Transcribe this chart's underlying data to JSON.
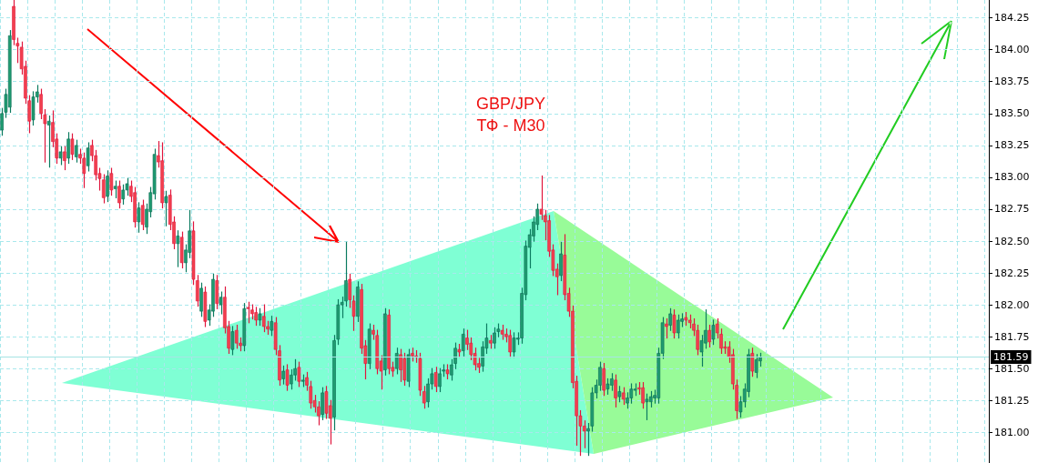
{
  "chart_data": {
    "type": "candlestick",
    "title": "GBP/JPY",
    "subtitle": "ТФ - M30",
    "categories": [
      null,
      null,
      null,
      null,
      null,
      null,
      null,
      null,
      null,
      null,
      null,
      null,
      null,
      null,
      null,
      null,
      null,
      null,
      null,
      null,
      null,
      null,
      null,
      null,
      null,
      null,
      null,
      null,
      null,
      null,
      null,
      null,
      null,
      null,
      null,
      null,
      null,
      null,
      null,
      null,
      null,
      null,
      null,
      null,
      null,
      null,
      null,
      null,
      null,
      null,
      null,
      null,
      null,
      null,
      null,
      null,
      null,
      null,
      null,
      null,
      null,
      null,
      null,
      null,
      null,
      null,
      null,
      null,
      null,
      null,
      null,
      null,
      null,
      null,
      null,
      null,
      null,
      null,
      null,
      null,
      null,
      null,
      null,
      null,
      null,
      null,
      null,
      null,
      null,
      null,
      null,
      null,
      null,
      null,
      null,
      null,
      null,
      null,
      null,
      null,
      null,
      null,
      null,
      null,
      null,
      null,
      null,
      null,
      null,
      null,
      null,
      null,
      null,
      null,
      null,
      null,
      null,
      null,
      null,
      null,
      null,
      null,
      null,
      null,
      null,
      null,
      null,
      null,
      null,
      null,
      null,
      null,
      null,
      null,
      null,
      null,
      null,
      null,
      null,
      null,
      null,
      null,
      null,
      null,
      null,
      null,
      null,
      null,
      null,
      null,
      null,
      null,
      null,
      null,
      null,
      null,
      null,
      null,
      null,
      null,
      null,
      null,
      null,
      null,
      null,
      null,
      null,
      null,
      null,
      null,
      null,
      null,
      null,
      null,
      null,
      null,
      null,
      null,
      null,
      null,
      null,
      null,
      null,
      null,
      null,
      null,
      null,
      null,
      null,
      null,
      null,
      null,
      null,
      null,
      null,
      null,
      null,
      null,
      null,
      null,
      null,
      null,
      null,
      null,
      null,
      null,
      null,
      null,
      null,
      null,
      null,
      null,
      null,
      null,
      null,
      null,
      null,
      null,
      null,
      null,
      null,
      null,
      null,
      null,
      null,
      null,
      null,
      null,
      null,
      null,
      null,
      null,
      null,
      null,
      null,
      null,
      null,
      null,
      null,
      null,
      null,
      null,
      null,
      null,
      null,
      null,
      null,
      null,
      null,
      null,
      null,
      null,
      null
    ],
    "ohlc": [
      [
        183.37,
        183.54,
        183.33,
        183.5
      ],
      [
        183.51,
        183.69,
        183.47,
        183.65
      ],
      [
        183.55,
        184.15,
        183.51,
        184.11
      ],
      [
        184.34,
        184.39,
        184.04,
        184.08
      ],
      [
        184.05,
        184.09,
        183.9,
        184.03
      ],
      [
        184.02,
        184.06,
        183.81,
        183.85
      ],
      [
        183.87,
        183.91,
        183.58,
        183.62
      ],
      [
        183.6,
        183.64,
        183.35,
        183.44
      ],
      [
        183.45,
        183.67,
        183.41,
        183.63
      ],
      [
        183.63,
        183.72,
        183.59,
        183.67
      ],
      [
        183.65,
        183.69,
        183.46,
        183.5
      ],
      [
        183.49,
        183.53,
        183.12,
        183.42
      ],
      [
        183.41,
        183.48,
        183.08,
        183.44
      ],
      [
        183.43,
        183.52,
        183.24,
        183.28
      ],
      [
        183.3,
        183.34,
        183.11,
        183.15
      ],
      [
        183.15,
        183.24,
        183.1,
        183.2
      ],
      [
        183.2,
        183.24,
        183.06,
        183.13
      ],
      [
        183.15,
        183.35,
        183.11,
        183.3
      ],
      [
        183.3,
        183.34,
        183.14,
        183.18
      ],
      [
        183.16,
        183.29,
        183.12,
        183.25
      ],
      [
        183.18,
        183.22,
        183.11,
        183.15
      ],
      [
        183.15,
        183.19,
        182.92,
        183.03
      ],
      [
        183.09,
        183.27,
        183.05,
        183.23
      ],
      [
        183.25,
        183.29,
        183.13,
        183.17
      ],
      [
        183.17,
        183.21,
        182.98,
        183.02
      ],
      [
        183.03,
        183.07,
        182.9,
        182.99
      ],
      [
        182.98,
        183.02,
        182.8,
        182.84
      ],
      [
        182.85,
        183.05,
        182.81,
        183.01
      ],
      [
        183.03,
        183.07,
        182.86,
        182.9
      ],
      [
        182.91,
        182.97,
        182.84,
        182.93
      ],
      [
        182.93,
        182.97,
        182.76,
        182.8
      ],
      [
        182.83,
        182.94,
        182.79,
        182.9
      ],
      [
        182.9,
        182.99,
        182.86,
        182.95
      ],
      [
        182.93,
        182.97,
        182.81,
        182.85
      ],
      [
        182.88,
        182.92,
        182.61,
        182.65
      ],
      [
        182.65,
        182.8,
        182.57,
        182.76
      ],
      [
        182.78,
        182.82,
        182.59,
        182.63
      ],
      [
        182.61,
        182.79,
        182.56,
        182.75
      ],
      [
        182.73,
        182.92,
        182.69,
        182.88
      ],
      [
        182.87,
        183.22,
        182.83,
        183.18
      ],
      [
        183.17,
        183.28,
        183.08,
        183.12
      ],
      [
        183.13,
        183.27,
        182.76,
        182.8
      ],
      [
        182.8,
        182.89,
        182.62,
        182.85
      ],
      [
        182.86,
        182.9,
        182.59,
        182.63
      ],
      [
        182.65,
        182.69,
        182.44,
        182.48
      ],
      [
        182.48,
        182.58,
        182.3,
        182.54
      ],
      [
        182.53,
        182.57,
        182.29,
        182.33
      ],
      [
        182.33,
        182.47,
        182.26,
        182.43
      ],
      [
        182.41,
        182.74,
        182.37,
        182.58
      ],
      [
        182.58,
        182.65,
        182.16,
        182.2
      ],
      [
        182.19,
        182.23,
        181.99,
        182.03
      ],
      [
        181.95,
        182.17,
        181.91,
        182.13
      ],
      [
        182.1,
        182.14,
        181.83,
        181.87
      ],
      [
        181.88,
        182.0,
        181.84,
        181.96
      ],
      [
        181.95,
        182.24,
        181.91,
        182.2
      ],
      [
        182.19,
        182.23,
        181.97,
        182.01
      ],
      [
        182.0,
        182.1,
        181.93,
        182.06
      ],
      [
        182.06,
        182.14,
        181.78,
        181.82
      ],
      [
        181.83,
        181.87,
        181.62,
        181.66
      ],
      [
        181.65,
        181.83,
        181.61,
        181.79
      ],
      [
        181.8,
        181.84,
        181.66,
        181.7
      ],
      [
        181.7,
        181.74,
        181.64,
        181.68
      ],
      [
        181.68,
        182.01,
        181.64,
        181.97
      ],
      [
        181.98,
        182.02,
        181.86,
        181.97
      ],
      [
        181.96,
        182.0,
        181.89,
        181.93
      ],
      [
        181.94,
        181.98,
        181.84,
        181.88
      ],
      [
        181.88,
        181.97,
        181.84,
        181.93
      ],
      [
        181.91,
        182.0,
        181.79,
        181.83
      ],
      [
        181.83,
        181.87,
        181.77,
        181.81
      ],
      [
        181.8,
        181.91,
        181.76,
        181.87
      ],
      [
        181.86,
        181.9,
        181.61,
        181.65
      ],
      [
        181.64,
        181.68,
        181.37,
        181.41
      ],
      [
        181.42,
        181.52,
        181.38,
        181.48
      ],
      [
        181.49,
        181.53,
        181.33,
        181.37
      ],
      [
        181.38,
        181.49,
        181.34,
        181.45
      ],
      [
        181.45,
        181.57,
        181.41,
        181.5
      ],
      [
        181.51,
        181.55,
        181.36,
        181.4
      ],
      [
        181.4,
        181.45,
        181.36,
        181.41
      ],
      [
        181.43,
        181.47,
        181.33,
        181.37
      ],
      [
        181.36,
        181.4,
        181.19,
        181.23
      ],
      [
        181.25,
        181.29,
        181.16,
        181.2
      ],
      [
        181.2,
        181.24,
        181.06,
        181.13
      ],
      [
        181.14,
        181.35,
        181.1,
        181.31
      ],
      [
        181.32,
        181.36,
        181.11,
        181.15
      ],
      [
        181.21,
        181.25,
        180.91,
        181.11
      ],
      [
        181.12,
        181.76,
        181.02,
        181.72
      ],
      [
        181.73,
        182.04,
        181.69,
        182.0
      ],
      [
        182.0,
        182.06,
        181.9,
        182.02
      ],
      [
        182.03,
        182.49,
        181.99,
        182.19
      ],
      [
        182.2,
        182.24,
        181.98,
        182.04
      ],
      [
        182.03,
        182.07,
        181.8,
        181.91
      ],
      [
        181.91,
        182.18,
        181.87,
        182.14
      ],
      [
        182.12,
        182.16,
        181.62,
        181.66
      ],
      [
        181.68,
        181.72,
        181.42,
        181.54
      ],
      [
        181.54,
        181.85,
        181.5,
        181.81
      ],
      [
        181.8,
        181.84,
        181.73,
        181.77
      ],
      [
        181.76,
        181.8,
        181.46,
        181.5
      ],
      [
        181.56,
        181.6,
        181.34,
        181.48
      ],
      [
        181.49,
        181.97,
        181.45,
        181.93
      ],
      [
        181.92,
        181.96,
        181.46,
        181.5
      ],
      [
        181.51,
        181.55,
        181.44,
        181.48
      ],
      [
        181.5,
        181.66,
        181.46,
        181.62
      ],
      [
        181.61,
        181.65,
        181.4,
        181.49
      ],
      [
        181.58,
        181.62,
        181.37,
        181.41
      ],
      [
        181.4,
        181.65,
        181.36,
        181.61
      ],
      [
        181.62,
        181.66,
        181.56,
        181.6
      ],
      [
        181.6,
        181.64,
        181.55,
        181.59
      ],
      [
        181.58,
        181.62,
        181.29,
        181.33
      ],
      [
        181.32,
        181.36,
        181.19,
        181.23
      ],
      [
        181.24,
        181.42,
        181.2,
        181.38
      ],
      [
        181.38,
        181.5,
        181.34,
        181.46
      ],
      [
        181.47,
        181.51,
        181.32,
        181.36
      ],
      [
        181.36,
        181.5,
        181.32,
        181.46
      ],
      [
        181.48,
        181.53,
        181.44,
        181.49
      ],
      [
        181.49,
        181.53,
        181.42,
        181.46
      ],
      [
        181.45,
        181.57,
        181.41,
        181.53
      ],
      [
        181.54,
        181.7,
        181.5,
        181.66
      ],
      [
        181.65,
        181.69,
        181.59,
        181.63
      ],
      [
        181.64,
        181.81,
        181.6,
        181.77
      ],
      [
        181.74,
        181.8,
        181.65,
        181.69
      ],
      [
        181.7,
        181.74,
        181.57,
        181.61
      ],
      [
        181.62,
        181.66,
        181.49,
        181.53
      ],
      [
        181.54,
        181.58,
        181.47,
        181.51
      ],
      [
        181.52,
        181.71,
        181.48,
        181.67
      ],
      [
        181.66,
        181.85,
        181.62,
        181.74
      ],
      [
        181.72,
        181.76,
        181.66,
        181.7
      ],
      [
        181.7,
        181.82,
        181.66,
        181.78
      ],
      [
        181.79,
        181.85,
        181.75,
        181.81
      ],
      [
        181.8,
        181.84,
        181.73,
        181.77
      ],
      [
        181.77,
        181.81,
        181.71,
        181.75
      ],
      [
        181.76,
        181.8,
        181.59,
        181.63
      ],
      [
        181.63,
        181.78,
        181.59,
        181.74
      ],
      [
        181.73,
        181.78,
        181.69,
        181.74
      ],
      [
        181.74,
        182.13,
        181.7,
        182.09
      ],
      [
        182.08,
        182.5,
        182.04,
        182.46
      ],
      [
        182.45,
        182.59,
        182.29,
        182.55
      ],
      [
        182.54,
        182.69,
        182.5,
        182.65
      ],
      [
        182.63,
        182.79,
        182.59,
        182.75
      ],
      [
        182.75,
        183.01,
        182.67,
        182.71
      ],
      [
        182.7,
        182.74,
        182.51,
        182.65
      ],
      [
        182.66,
        182.7,
        182.38,
        182.42
      ],
      [
        182.43,
        182.47,
        182.23,
        182.27
      ],
      [
        182.28,
        182.32,
        182.08,
        182.22
      ],
      [
        182.23,
        182.49,
        182.19,
        182.4
      ],
      [
        182.39,
        182.55,
        182.04,
        182.08
      ],
      [
        182.09,
        182.13,
        181.91,
        181.95
      ],
      [
        181.95,
        181.99,
        181.35,
        181.39
      ],
      [
        181.4,
        181.44,
        180.9,
        181.13
      ],
      [
        181.13,
        181.17,
        180.82,
        181.05
      ],
      [
        181.05,
        181.09,
        180.88,
        181.01
      ],
      [
        181.01,
        181.07,
        180.82,
        181.03
      ],
      [
        181.05,
        181.35,
        181.01,
        181.31
      ],
      [
        181.31,
        181.41,
        181.27,
        181.37
      ],
      [
        181.37,
        181.55,
        181.33,
        181.51
      ],
      [
        181.5,
        181.54,
        181.29,
        181.33
      ],
      [
        181.34,
        181.42,
        181.3,
        181.38
      ],
      [
        181.37,
        181.46,
        181.33,
        181.42
      ],
      [
        181.41,
        181.45,
        181.2,
        181.27
      ],
      [
        181.28,
        181.36,
        181.24,
        181.32
      ],
      [
        181.31,
        181.35,
        181.22,
        181.26
      ],
      [
        181.23,
        181.31,
        181.19,
        181.27
      ],
      [
        181.27,
        181.38,
        181.23,
        181.34
      ],
      [
        181.33,
        181.38,
        181.29,
        181.34
      ],
      [
        181.35,
        181.39,
        181.3,
        181.34
      ],
      [
        181.35,
        181.39,
        181.19,
        181.23
      ],
      [
        181.24,
        181.3,
        181.1,
        181.26
      ],
      [
        181.24,
        181.32,
        181.2,
        181.28
      ],
      [
        181.27,
        181.33,
        181.23,
        181.29
      ],
      [
        181.27,
        181.66,
        181.23,
        181.62
      ],
      [
        181.62,
        181.9,
        181.58,
        181.86
      ],
      [
        181.85,
        181.89,
        181.74,
        181.83
      ],
      [
        181.84,
        181.97,
        181.8,
        181.93
      ],
      [
        181.92,
        181.96,
        181.74,
        181.78
      ],
      [
        181.78,
        181.92,
        181.74,
        181.88
      ],
      [
        181.87,
        181.93,
        181.83,
        181.89
      ],
      [
        181.9,
        181.94,
        181.84,
        181.88
      ],
      [
        181.88,
        181.92,
        181.82,
        181.86
      ],
      [
        181.85,
        181.89,
        181.76,
        181.8
      ],
      [
        181.8,
        181.84,
        181.61,
        181.65
      ],
      [
        181.63,
        181.76,
        181.52,
        181.72
      ],
      [
        181.7,
        181.96,
        181.66,
        181.8
      ],
      [
        181.8,
        181.84,
        181.67,
        181.71
      ],
      [
        181.73,
        181.88,
        181.69,
        181.84
      ],
      [
        181.85,
        181.89,
        181.74,
        181.78
      ],
      [
        181.77,
        181.81,
        181.62,
        181.66
      ],
      [
        181.67,
        181.71,
        181.62,
        181.66
      ],
      [
        181.67,
        181.71,
        181.55,
        181.59
      ],
      [
        181.61,
        181.65,
        181.34,
        181.38
      ],
      [
        181.37,
        181.41,
        181.11,
        181.17
      ],
      [
        181.16,
        181.28,
        181.12,
        181.24
      ],
      [
        181.24,
        181.38,
        181.2,
        181.34
      ],
      [
        181.32,
        181.65,
        181.28,
        181.61
      ],
      [
        181.62,
        181.66,
        181.44,
        181.48
      ],
      [
        181.47,
        181.61,
        181.43,
        181.57
      ],
      [
        181.56,
        181.62,
        181.52,
        181.59
      ],
      null,
      null,
      null,
      null,
      null,
      null,
      null,
      null,
      null,
      null,
      null,
      null,
      null,
      null,
      null,
      null,
      null,
      null,
      null,
      null,
      null,
      null,
      null,
      null,
      null,
      null,
      null,
      null,
      null,
      null,
      null,
      null,
      null,
      null,
      null,
      null,
      null,
      null,
      null,
      null,
      null,
      null,
      null,
      null,
      null,
      null,
      null,
      null,
      null,
      null,
      null,
      null,
      null,
      null,
      null,
      null,
      null,
      null
    ],
    "ylim": [
      180.76,
      184.39
    ],
    "yticks": [
      {
        "value": 181,
        "label": "181.00"
      },
      {
        "value": 181.25,
        "label": "181.25"
      },
      {
        "value": 181.5,
        "label": "181.50"
      },
      {
        "value": 181.75,
        "label": "181.75"
      },
      {
        "value": 182,
        "label": "182.00"
      },
      {
        "value": 182.25,
        "label": "182.25"
      },
      {
        "value": 182.5,
        "label": "182.50"
      },
      {
        "value": 182.75,
        "label": "182.75"
      },
      {
        "value": 183,
        "label": "183.00"
      },
      {
        "value": 183.25,
        "label": "183.25"
      },
      {
        "value": 183.5,
        "label": "183.50"
      },
      {
        "value": 183.75,
        "label": "183.75"
      },
      {
        "value": 184,
        "label": "184.00"
      },
      {
        "value": 184.25,
        "label": "184.25"
      }
    ],
    "grid": true,
    "tick_labels": "y",
    "ref_lines": [
      {
        "axis": "y",
        "value": 181.59,
        "label": "181.59",
        "color": "#a6e4e4"
      }
    ]
  }
}
